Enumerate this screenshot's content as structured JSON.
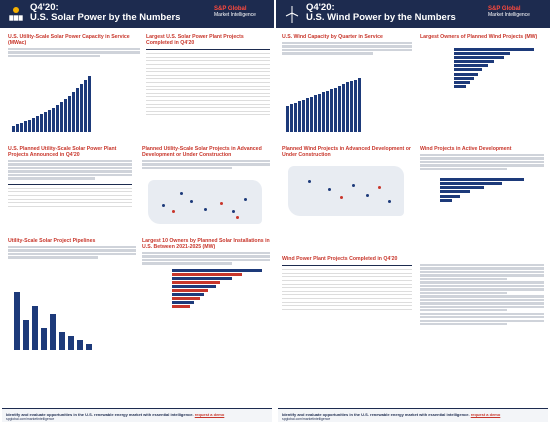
{
  "solar_header": {
    "title_line1": "Q4'20:",
    "title_line2": "U.S. Solar Power by the Numbers",
    "brand1": "S&P Global",
    "brand2": "Market Intelligence"
  },
  "wind_header": {
    "title_line1": "Q4'20:",
    "title_line2": "U.S. Wind Power by the Numbers",
    "brand1": "S&P Global",
    "brand2": "Market Intelligence"
  },
  "solar": {
    "p1_title": "U.S. Utility-Scale Solar Power Capacity in Service (MWac)",
    "p2_title": "Largest U.S. Solar Power Plant Projects Completed in Q4'20",
    "p3_title": "U.S. Planned Utility-Scale Solar Power Plant Projects Announced in Q4'20",
    "p4_title": "Planned Utility-Scale Solar Projects in Advanced Development or Under Construction",
    "p5_title": "Utility-Scale Solar Project Pipelines",
    "p6_title": "Largest 10 Owners by Planned Solar Installations in U.S. Between 2021-2025 (MW)"
  },
  "wind": {
    "p1_title": "U.S. Wind Capacity by Quarter in Service",
    "p2_title": "Largest Owners of Planned Wind Projects (MW)",
    "p3_title": "Planned Wind Projects in Advanced Development or Under Construction",
    "p4_title": "Wind Projects in Active Development",
    "p5_title": "Wind Power Plant Projects Completed in Q4'20"
  },
  "footer": {
    "solar_text": "Identify and evaluate opportunities in the U.S. renewable energy market with essential intelligence.",
    "solar_link": "request a demo",
    "solar_url": "spglobal.com/marketintelligence",
    "wind_text": "Identify and evaluate opportunities in the U.S. renewable energy market with essential intelligence.",
    "wind_link": "request a demo",
    "wind_url": "spglobal.com/marketintelligence"
  },
  "colors": {
    "navy": "#1d2b4f",
    "accent": "#c8362b"
  }
}
